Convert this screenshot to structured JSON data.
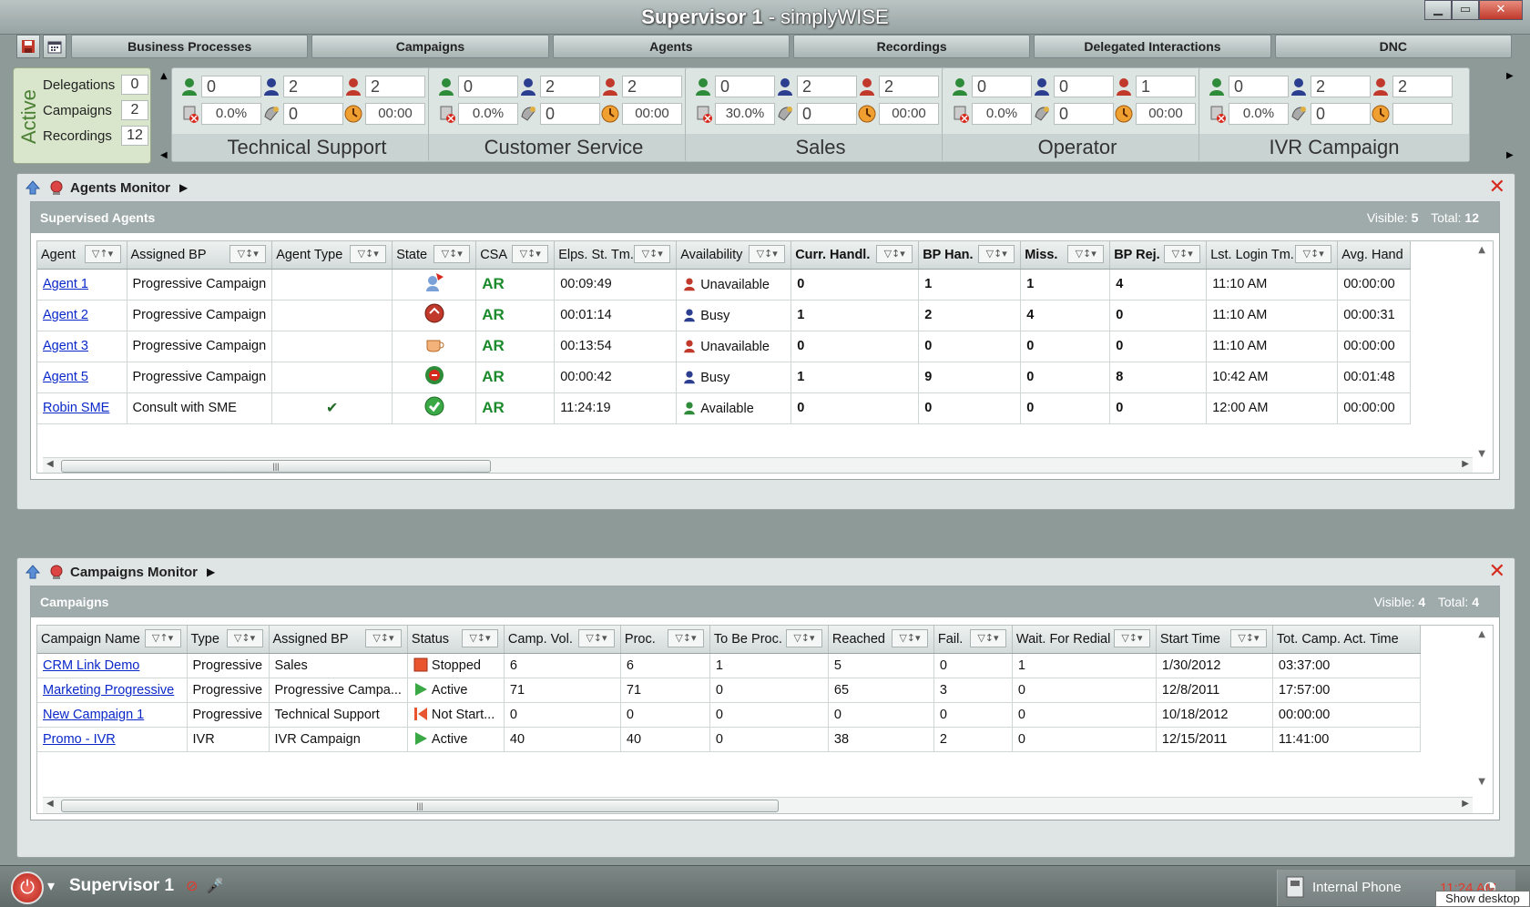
{
  "window": {
    "title_bold": "Supervisor 1",
    "title_rest": "- simplyWISE"
  },
  "tabs": [
    "Business Processes",
    "Campaigns",
    "Agents",
    "Recordings",
    "Delegated Interactions",
    "DNC"
  ],
  "active_summary": {
    "label": "Active",
    "rows": [
      {
        "label": "Delegations",
        "value": "0"
      },
      {
        "label": "Campaigns",
        "value": "2"
      },
      {
        "label": "Recordings",
        "value": "12"
      }
    ]
  },
  "bp_cards": [
    {
      "name": "Technical Support",
      "available": "0",
      "busy": "2",
      "unavailable": "2",
      "fail_rate": "0.0%",
      "queue": "0",
      "wait": "00:00"
    },
    {
      "name": "Customer Service",
      "available": "0",
      "busy": "2",
      "unavailable": "2",
      "fail_rate": "0.0%",
      "queue": "0",
      "wait": "00:00"
    },
    {
      "name": "Sales",
      "available": "0",
      "busy": "2",
      "unavailable": "2",
      "fail_rate": "30.0%",
      "queue": "0",
      "wait": "00:00"
    },
    {
      "name": "Operator",
      "available": "0",
      "busy": "0",
      "unavailable": "1",
      "fail_rate": "0.0%",
      "queue": "0",
      "wait": "00:00"
    },
    {
      "name": "IVR Campaign",
      "available": "0",
      "busy": "2",
      "unavailable": "2",
      "fail_rate": "0.0%",
      "queue": "0",
      "wait": ""
    }
  ],
  "agents_monitor": {
    "title": "Agents Monitor",
    "caption": "Supervised Agents",
    "visible_label": "Visible:",
    "visible": "5",
    "total_label": "Total:",
    "total": "12",
    "columns": [
      "Agent",
      "Assigned BP",
      "Agent Type",
      "State",
      "CSA",
      "Elps. St. Tm.",
      "Availability",
      "Curr. Handl.",
      "BP Han.",
      "Miss.",
      "BP Rej.",
      "Lst. Login Tm.",
      "Avg. Hand"
    ],
    "rows": [
      {
        "agent": "Agent 1",
        "bp": "Progressive Campaign",
        "type": "",
        "csa": "AR",
        "elapsed": "00:09:49",
        "availability": "Unavailable",
        "avail_color": "#c0392b",
        "curr": "0",
        "bp_han": "1",
        "miss": "1",
        "bp_rej": "4",
        "login": "11:10 AM",
        "avg": "00:00:00"
      },
      {
        "agent": "Agent 2",
        "bp": "Progressive Campaign",
        "type": "",
        "csa": "AR",
        "elapsed": "00:01:14",
        "availability": "Busy",
        "avail_color": "#2c3e8f",
        "curr": "1",
        "bp_han": "2",
        "miss": "4",
        "bp_rej": "0",
        "login": "11:10 AM",
        "avg": "00:00:31"
      },
      {
        "agent": "Agent 3",
        "bp": "Progressive Campaign",
        "type": "",
        "csa": "AR",
        "elapsed": "00:13:54",
        "availability": "Unavailable",
        "avail_color": "#c0392b",
        "curr": "0",
        "bp_han": "0",
        "miss": "0",
        "bp_rej": "0",
        "login": "11:10 AM",
        "avg": "00:00:00"
      },
      {
        "agent": "Agent 5",
        "bp": "Progressive Campaign",
        "type": "",
        "csa": "AR",
        "elapsed": "00:00:42",
        "availability": "Busy",
        "avail_color": "#2c3e8f",
        "curr": "1",
        "bp_han": "9",
        "miss": "0",
        "bp_rej": "8",
        "login": "10:42 AM",
        "avg": "00:01:48"
      },
      {
        "agent": "Robin SME",
        "bp": "Consult with SME",
        "type": "✔",
        "csa": "AR",
        "elapsed": "11:24:19",
        "availability": "Available",
        "avail_color": "#2e8b3a",
        "curr": "0",
        "bp_han": "0",
        "miss": "0",
        "bp_rej": "0",
        "login": "12:00 AM",
        "avg": "00:00:00"
      }
    ]
  },
  "campaigns_monitor": {
    "title": "Campaigns Monitor",
    "caption": "Campaigns",
    "visible_label": "Visible:",
    "visible": "4",
    "total_label": "Total:",
    "total": "4",
    "columns": [
      "Campaign Name",
      "Type",
      "Assigned BP",
      "Status",
      "Camp. Vol.",
      "Proc.",
      "To Be Proc.",
      "Reached",
      "Fail.",
      "Wait. For Redial",
      "Start Time",
      "Tot. Camp. Act. Time"
    ],
    "rows": [
      {
        "name": "CRM Link Demo",
        "type": "Progressive",
        "bp": "Sales",
        "status": "Stopped",
        "status_icon": "stop",
        "vol": "6",
        "proc": "6",
        "tbp": "1",
        "reached": "5",
        "fail": "0",
        "redial": "1",
        "start": "1/30/2012",
        "act": "03:37:00"
      },
      {
        "name": "Marketing Progressive",
        "type": "Progressive",
        "bp": "Progressive Campa...",
        "status": "Active",
        "status_icon": "play",
        "vol": "71",
        "proc": "71",
        "tbp": "0",
        "reached": "65",
        "fail": "3",
        "redial": "0",
        "start": "12/8/2011",
        "act": "17:57:00"
      },
      {
        "name": "New Campaign 1",
        "type": "Progressive",
        "bp": "Technical Support",
        "status": "Not Start...",
        "status_icon": "notstarted",
        "vol": "0",
        "proc": "0",
        "tbp": "0",
        "reached": "0",
        "fail": "0",
        "redial": "0",
        "start": "10/18/2012",
        "act": "00:00:00"
      },
      {
        "name": "Promo - IVR",
        "type": "IVR",
        "bp": "IVR Campaign",
        "status": "Active",
        "status_icon": "play",
        "vol": "40",
        "proc": "40",
        "tbp": "0",
        "reached": "38",
        "fail": "2",
        "redial": "0",
        "start": "12/15/2011",
        "act": "11:41:00"
      }
    ]
  },
  "taskbar": {
    "user": "Supervisor 1",
    "phone": "Internal Phone",
    "clock": "11:24 AM",
    "tooltip": "Show desktop"
  }
}
